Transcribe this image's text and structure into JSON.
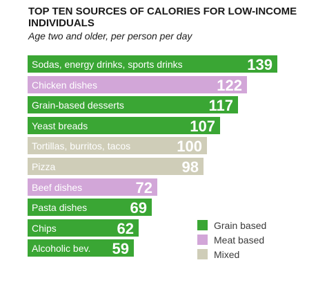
{
  "chart_data": {
    "type": "bar",
    "orientation": "horizontal",
    "title": "TOP TEN SOURCES OF CALORIES FOR LOW-INCOME INDIVIDUALS",
    "subtitle": "Age two and older, per person per day",
    "categories": [
      "Sodas, energy drinks, sports drinks",
      "Chicken dishes",
      "Grain-based desserts",
      "Yeast breads",
      "Tortillas, burritos, tacos",
      "Pizza",
      "Beef dishes",
      "Pasta dishes",
      "Chips",
      "Alcoholic bev."
    ],
    "values": [
      139,
      122,
      117,
      107,
      100,
      98,
      72,
      69,
      62,
      59
    ],
    "groups": [
      "Grain based",
      "Meat based",
      "Grain based",
      "Grain based",
      "Mixed",
      "Mixed",
      "Meat based",
      "Grain based",
      "Grain based",
      "Grain based"
    ],
    "xlim": [
      0,
      139
    ],
    "grid": false,
    "legend": {
      "placement": "bottom-right",
      "entries": [
        {
          "label": "Grain based",
          "color": "#3aa634"
        },
        {
          "label": "Meat based",
          "color": "#d2a6d8"
        },
        {
          "label": "Mixed",
          "color": "#cfcdb8"
        }
      ]
    }
  }
}
